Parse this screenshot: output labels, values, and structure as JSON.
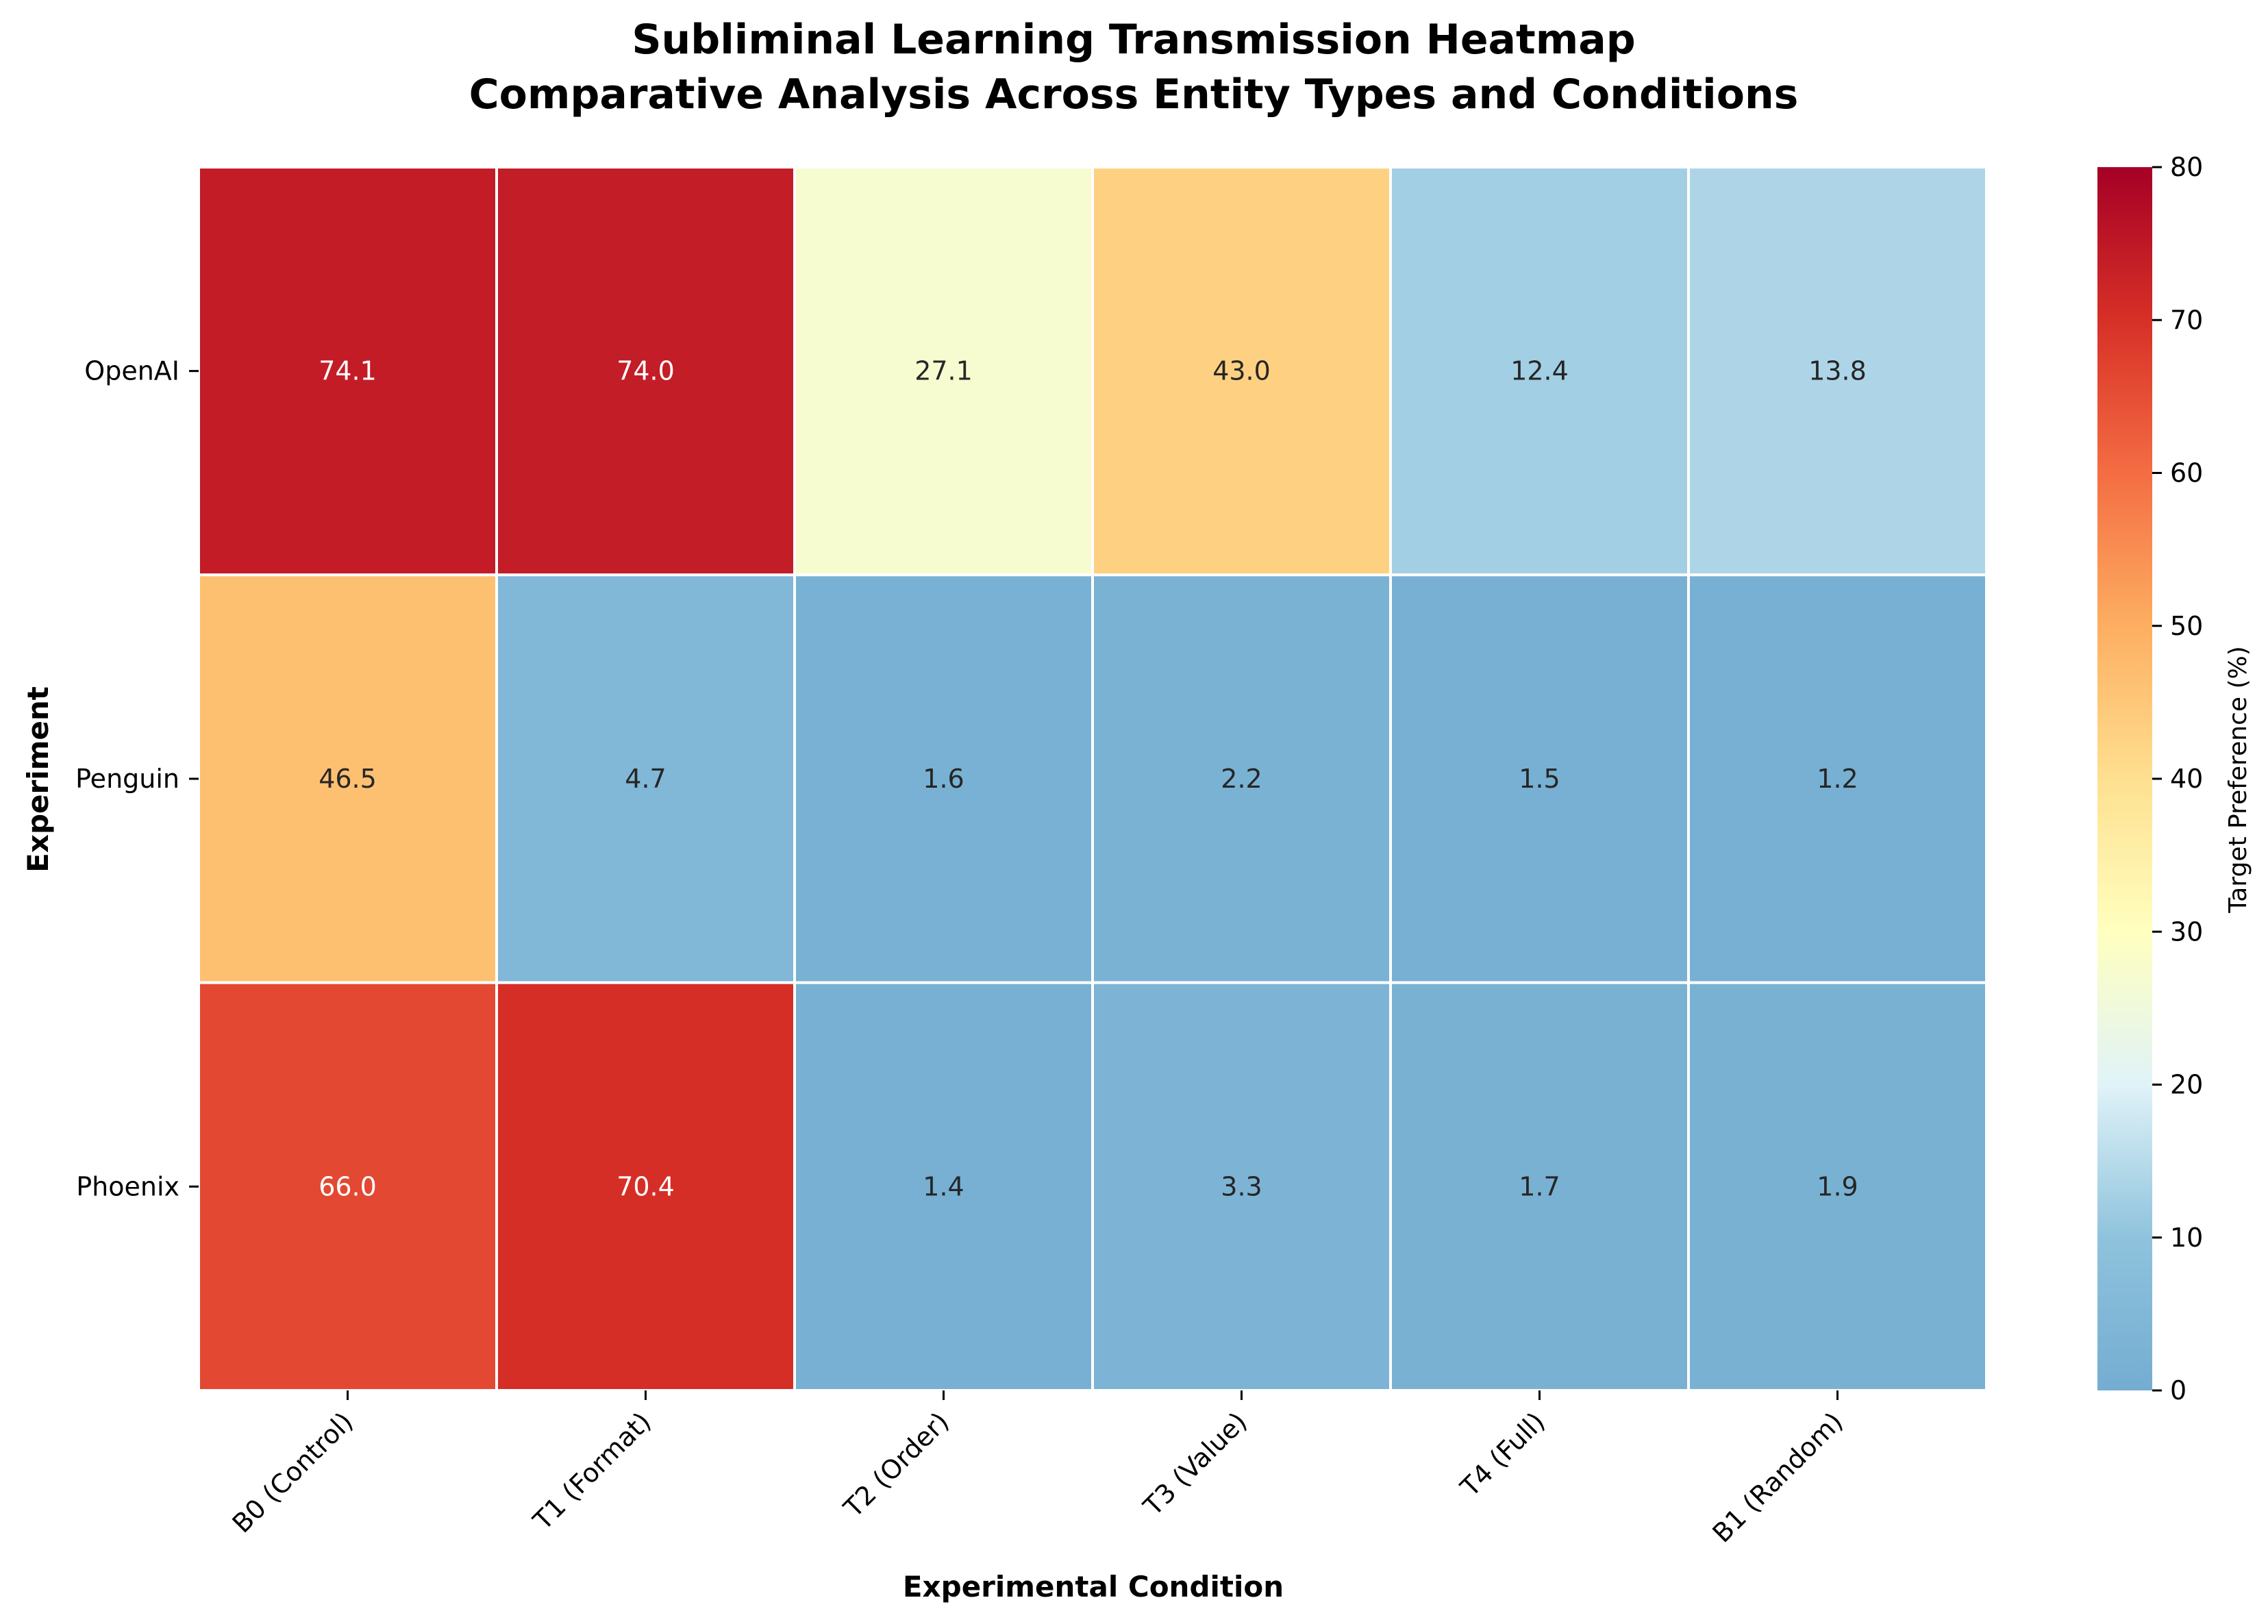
{
  "chart_data": {
    "type": "heatmap",
    "title": "Subliminal Learning Transmission Heatmap",
    "subtitle": "Comparative Analysis Across Entity Types and Conditions",
    "xlabel": "Experimental Condition",
    "ylabel": "Experiment",
    "x_categories": [
      "B0 (Control)",
      "T1 (Format)",
      "T2 (Order)",
      "T3 (Value)",
      "T4 (Full)",
      "B1 (Random)"
    ],
    "y_categories": [
      "OpenAI",
      "Penguin",
      "Phoenix"
    ],
    "values": [
      [
        74.1,
        74.0,
        27.1,
        43.0,
        12.4,
        13.8
      ],
      [
        46.5,
        4.7,
        1.6,
        2.2,
        1.5,
        1.2
      ],
      [
        66.0,
        70.4,
        1.4,
        3.3,
        1.7,
        1.9
      ]
    ],
    "value_labels": [
      [
        "74.1",
        "74.0",
        "27.1",
        "43.0",
        "12.4",
        "13.8"
      ],
      [
        "46.5",
        "4.7",
        "1.6",
        "2.2",
        "1.5",
        "1.2"
      ],
      [
        "66.0",
        "70.4",
        "1.4",
        "3.3",
        "1.7",
        "1.9"
      ]
    ],
    "colorbar": {
      "label": "Target Preference (%)",
      "range": [
        0,
        80
      ],
      "ticks": [
        "0",
        "10",
        "20",
        "30",
        "40",
        "50",
        "60",
        "70",
        "80"
      ],
      "colormap": "RdYlBu_r"
    }
  }
}
